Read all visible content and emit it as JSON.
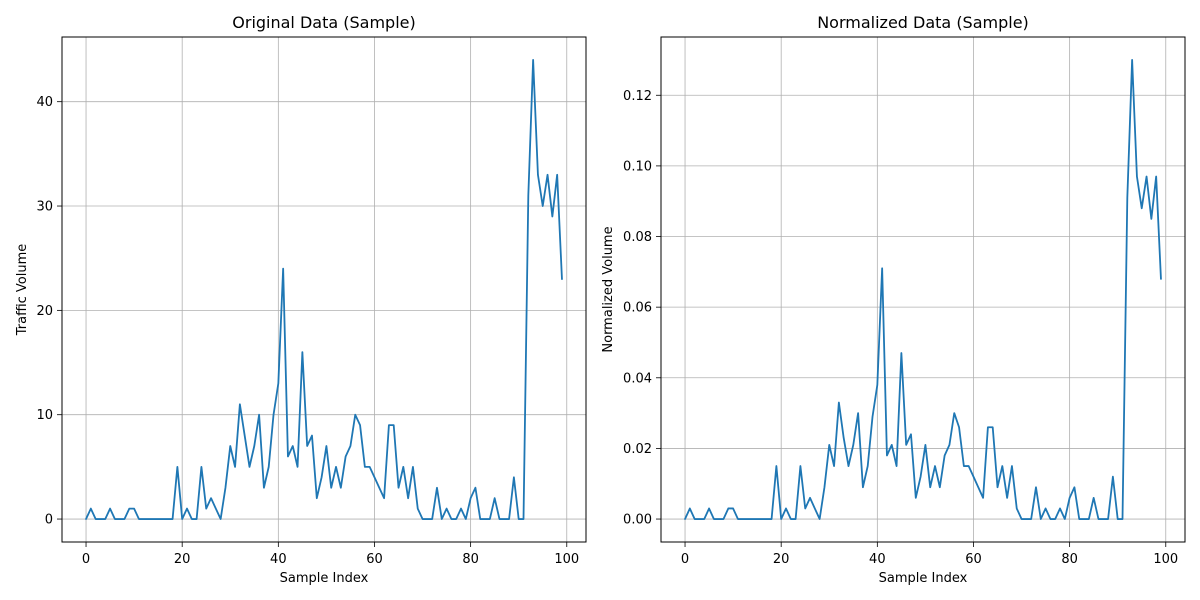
{
  "chart_data": [
    {
      "type": "line",
      "title": "Original Data (Sample)",
      "xlabel": "Sample Index",
      "ylabel": "Traffic Volume",
      "xlim": [
        -5,
        104
      ],
      "ylim": [
        -2.2,
        46.2
      ],
      "xticks": [
        0,
        20,
        40,
        60,
        80,
        100
      ],
      "yticks": [
        0,
        10,
        20,
        30,
        40
      ],
      "ytick_decimals": 0,
      "grid": true,
      "color": "#1f77b4",
      "series": [
        {
          "values": [
            0,
            1,
            0,
            0,
            0,
            1,
            0,
            0,
            0,
            1,
            1,
            0,
            0,
            0,
            0,
            0,
            0,
            0,
            0,
            5,
            0,
            1,
            0,
            0,
            5,
            1,
            2,
            1,
            0,
            3,
            7,
            5,
            11,
            8,
            5,
            7,
            10,
            3,
            5,
            10,
            13,
            24,
            6,
            7,
            5,
            16,
            7,
            8,
            2,
            4,
            7,
            3,
            5,
            3,
            6,
            7,
            10,
            9,
            5,
            5,
            4,
            3,
            2,
            9,
            9,
            3,
            5,
            2,
            5,
            1,
            0,
            0,
            0,
            3,
            0,
            1,
            0,
            0,
            1,
            0,
            2,
            3,
            0,
            0,
            0,
            2,
            0,
            0,
            0,
            4,
            0,
            0,
            31,
            44,
            33,
            30,
            33,
            29,
            33,
            23
          ]
        }
      ]
    },
    {
      "type": "line",
      "title": "Normalized Data (Sample)",
      "xlabel": "Sample Index",
      "ylabel": "Normalized Volume",
      "xlim": [
        -5,
        104
      ],
      "ylim": [
        -0.0065,
        0.1365
      ],
      "xticks": [
        0,
        20,
        40,
        60,
        80,
        100
      ],
      "yticks": [
        0.0,
        0.02,
        0.04,
        0.06,
        0.08,
        0.1,
        0.12
      ],
      "ytick_decimals": 2,
      "grid": true,
      "color": "#1f77b4",
      "series": [
        {
          "values": [
            0,
            0.003,
            0,
            0,
            0,
            0.003,
            0,
            0,
            0,
            0.003,
            0.003,
            0,
            0,
            0,
            0,
            0,
            0,
            0,
            0,
            0.015,
            0,
            0.003,
            0,
            0,
            0.015,
            0.003,
            0.006,
            0.003,
            0,
            0.009,
            0.021,
            0.015,
            0.033,
            0.023,
            0.015,
            0.021,
            0.03,
            0.009,
            0.015,
            0.029,
            0.038,
            0.071,
            0.018,
            0.021,
            0.015,
            0.047,
            0.021,
            0.024,
            0.006,
            0.012,
            0.021,
            0.009,
            0.015,
            0.009,
            0.018,
            0.021,
            0.03,
            0.026,
            0.015,
            0.015,
            0.012,
            0.009,
            0.006,
            0.026,
            0.026,
            0.009,
            0.015,
            0.006,
            0.015,
            0.003,
            0,
            0,
            0,
            0.009,
            0,
            0.003,
            0,
            0,
            0.003,
            0,
            0.006,
            0.009,
            0,
            0,
            0,
            0.006,
            0,
            0,
            0,
            0.012,
            0,
            0,
            0.091,
            0.13,
            0.097,
            0.088,
            0.097,
            0.085,
            0.097,
            0.068
          ]
        }
      ]
    }
  ]
}
